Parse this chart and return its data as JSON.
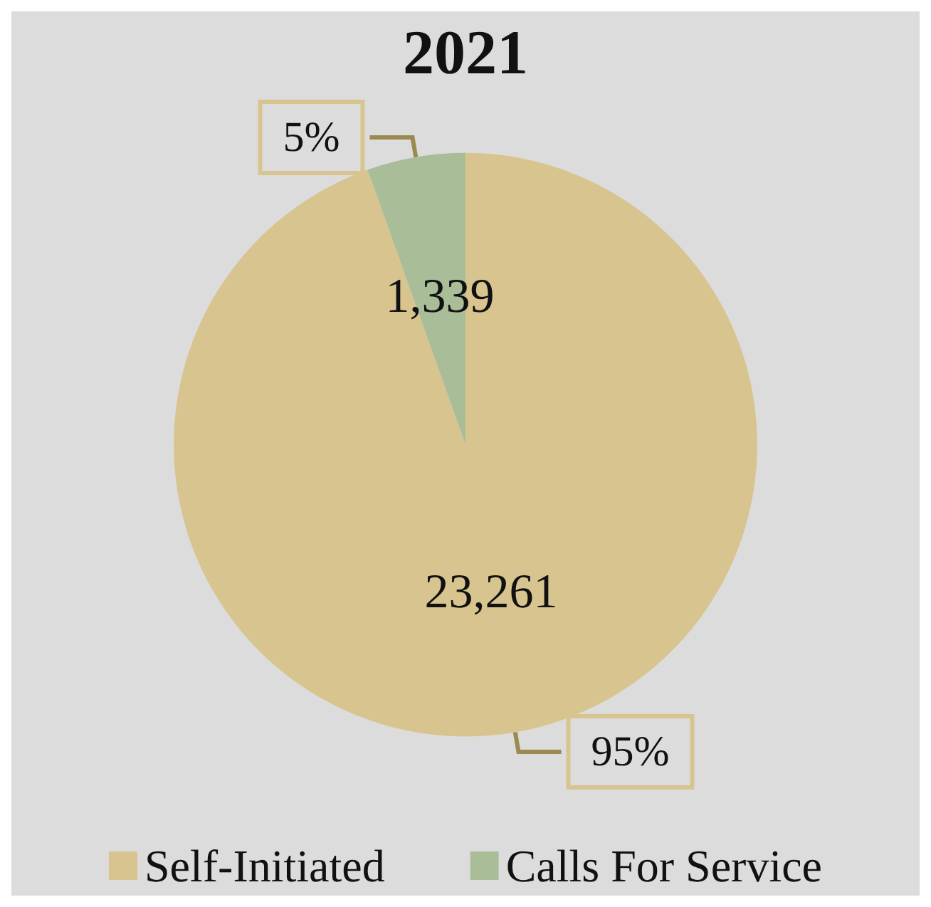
{
  "chart_data": {
    "type": "pie",
    "title": "2021",
    "categories": [
      "Self-Initiated",
      "Calls For Service"
    ],
    "values": [
      23261,
      1339
    ],
    "value_labels": [
      "23,261",
      "1,339"
    ],
    "colors": [
      "#d8c48e",
      "#a9bd99"
    ],
    "annotations": [
      "95%",
      "5%"
    ],
    "legend": "bottom"
  }
}
